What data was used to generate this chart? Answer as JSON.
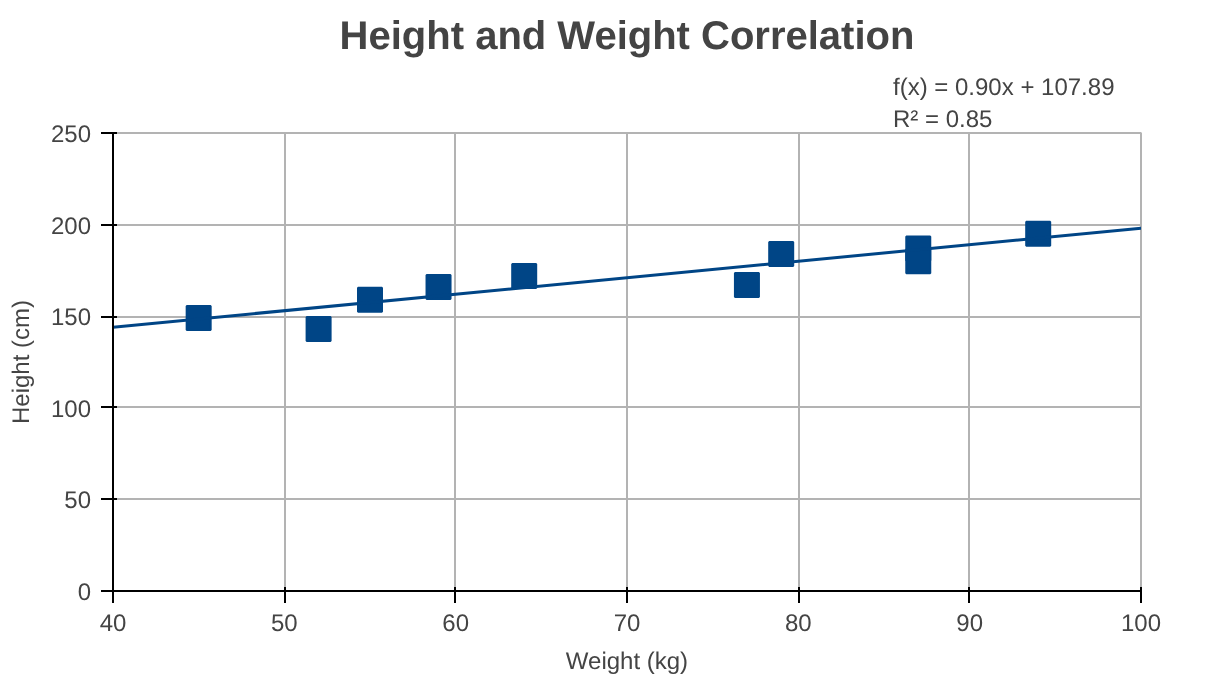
{
  "chart_data": {
    "type": "scatter",
    "title": "Height and Weight Correlation",
    "xlabel": "Weight (kg)",
    "ylabel": "Height (cm)",
    "annotations": [
      "f(x) = 0.90x + 107.89",
      "R² = 0.85"
    ],
    "series": [
      {
        "type": "scatter",
        "color": "#004586",
        "marker": "square",
        "x": [
          45,
          52,
          55,
          59,
          64,
          77,
          79,
          87,
          87,
          94
        ],
        "values": [
          149,
          143,
          159,
          166,
          172,
          167,
          184,
          187,
          180,
          195
        ]
      },
      {
        "type": "line",
        "color": "#004586",
        "x": [
          40,
          100
        ],
        "values": [
          144,
          198
        ]
      }
    ],
    "xlim": [
      40,
      100
    ],
    "ylim": [
      0,
      250
    ],
    "xticks": [
      40,
      50,
      60,
      70,
      80,
      90,
      100
    ],
    "yticks": [
      0,
      50,
      100,
      150,
      200,
      250
    ],
    "grid": true
  }
}
